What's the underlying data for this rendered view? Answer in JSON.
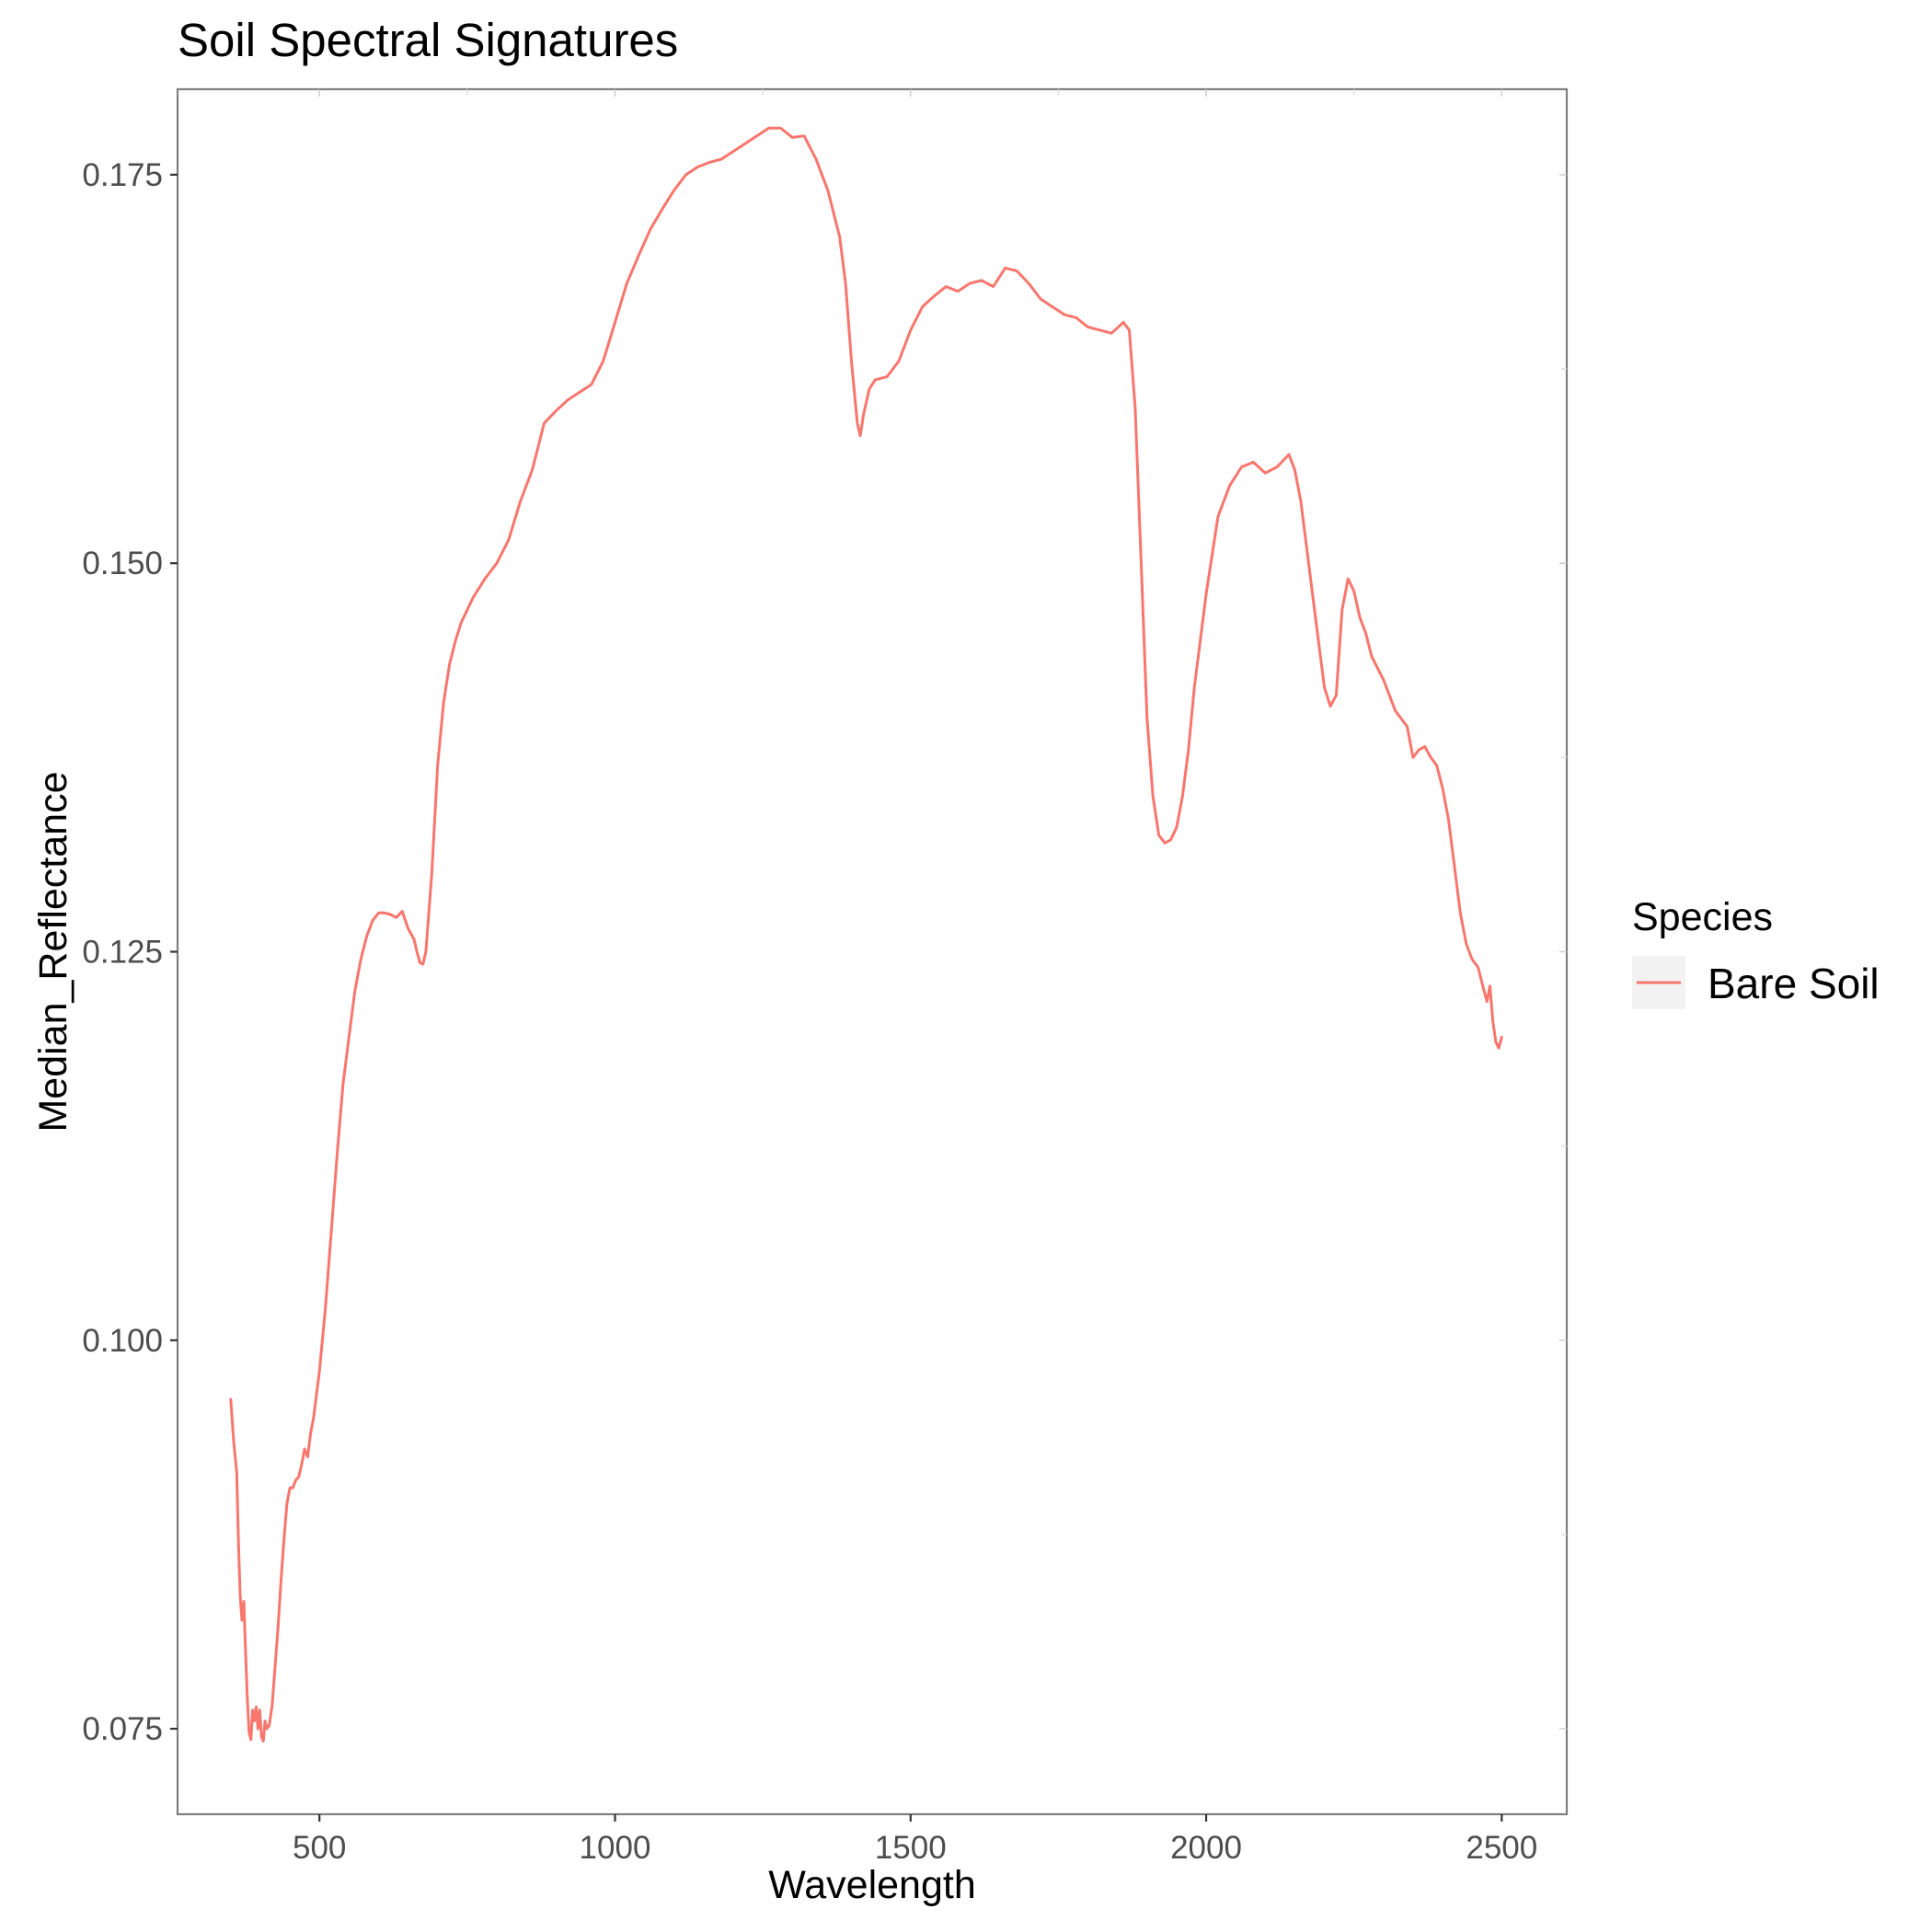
{
  "chart_data": {
    "type": "line",
    "title": "Soil Spectral Signatures",
    "xlabel": "Wavelength",
    "ylabel": "Median_Reflectance",
    "xlim": [
      260,
      2610
    ],
    "ylim": [
      0.0695,
      0.1805
    ],
    "x_ticks": [
      500,
      1000,
      1500,
      2000,
      2500
    ],
    "x_tick_labels": [
      "500",
      "1000",
      "1500",
      "2000",
      "2500"
    ],
    "x_minor_ticks": [
      750,
      1250,
      1750,
      2250
    ],
    "y_ticks": [
      0.075,
      0.1,
      0.125,
      0.15,
      0.175
    ],
    "y_tick_labels": [
      "0.075",
      "0.100",
      "0.125",
      "0.150",
      "0.175"
    ],
    "y_minor_ticks": [
      0.0875,
      0.1125,
      0.1375,
      0.1625
    ],
    "grid": false,
    "legend": {
      "title": "Species",
      "position": "right"
    },
    "series": [
      {
        "name": "Bare Soil",
        "color": "#F8766D",
        "x": [
          350,
          355,
          360,
          363,
          366,
          369,
          372,
          375,
          378,
          381,
          384,
          387,
          390,
          393,
          396,
          399,
          402,
          405,
          408,
          411,
          415,
          420,
          425,
          430,
          435,
          440,
          445,
          450,
          455,
          460,
          465,
          470,
          475,
          480,
          485,
          490,
          495,
          500,
          510,
          520,
          530,
          540,
          550,
          560,
          570,
          580,
          590,
          600,
          610,
          620,
          630,
          640,
          650,
          660,
          665,
          670,
          675,
          680,
          690,
          700,
          710,
          720,
          730,
          740,
          750,
          760,
          780,
          800,
          820,
          840,
          860,
          880,
          900,
          920,
          940,
          960,
          980,
          1000,
          1020,
          1040,
          1060,
          1080,
          1100,
          1120,
          1140,
          1160,
          1180,
          1200,
          1220,
          1240,
          1260,
          1280,
          1300,
          1320,
          1340,
          1360,
          1380,
          1390,
          1400,
          1410,
          1415,
          1420,
          1430,
          1440,
          1460,
          1480,
          1500,
          1520,
          1540,
          1560,
          1580,
          1600,
          1620,
          1640,
          1660,
          1680,
          1700,
          1720,
          1740,
          1760,
          1780,
          1800,
          1820,
          1840,
          1860,
          1870,
          1880,
          1890,
          1900,
          1910,
          1920,
          1930,
          1940,
          1950,
          1960,
          1970,
          1980,
          2000,
          2020,
          2040,
          2060,
          2080,
          2100,
          2120,
          2140,
          2150,
          2160,
          2170,
          2180,
          2190,
          2200,
          2210,
          2220,
          2230,
          2240,
          2250,
          2260,
          2270,
          2280,
          2300,
          2320,
          2340,
          2350,
          2360,
          2370,
          2380,
          2390,
          2400,
          2410,
          2420,
          2430,
          2440,
          2450,
          2460,
          2470,
          2475,
          2480,
          2485,
          2490,
          2495,
          2500
        ],
        "y": [
          0.0962,
          0.0935,
          0.0915,
          0.087,
          0.0835,
          0.082,
          0.0832,
          0.08,
          0.077,
          0.0748,
          0.0743,
          0.0762,
          0.0755,
          0.0764,
          0.075,
          0.0762,
          0.0745,
          0.0742,
          0.0755,
          0.075,
          0.0752,
          0.0765,
          0.079,
          0.0815,
          0.0845,
          0.0872,
          0.0895,
          0.0905,
          0.0905,
          0.091,
          0.0912,
          0.092,
          0.093,
          0.0925,
          0.094,
          0.095,
          0.0965,
          0.098,
          0.102,
          0.107,
          0.112,
          0.1165,
          0.1195,
          0.1225,
          0.1245,
          0.126,
          0.127,
          0.1275,
          0.1275,
          0.1274,
          0.1272,
          0.1276,
          0.1265,
          0.1258,
          0.125,
          0.1243,
          0.1242,
          0.125,
          0.13,
          0.137,
          0.141,
          0.1435,
          0.145,
          0.1462,
          0.147,
          0.1478,
          0.149,
          0.15,
          0.1515,
          0.154,
          0.156,
          0.159,
          0.1598,
          0.1605,
          0.161,
          0.1615,
          0.163,
          0.1655,
          0.168,
          0.1698,
          0.1715,
          0.1728,
          0.174,
          0.175,
          0.1755,
          0.1758,
          0.176,
          0.1765,
          0.177,
          0.1775,
          0.178,
          0.178,
          0.1774,
          0.1775,
          0.176,
          0.174,
          0.171,
          0.168,
          0.163,
          0.159,
          0.1582,
          0.1595,
          0.1612,
          0.1618,
          0.162,
          0.163,
          0.165,
          0.1665,
          0.1672,
          0.1678,
          0.1675,
          0.168,
          0.1682,
          0.1678,
          0.169,
          0.1688,
          0.168,
          0.167,
          0.1665,
          0.166,
          0.1658,
          0.1652,
          0.165,
          0.1648,
          0.1655,
          0.165,
          0.16,
          0.15,
          0.14,
          0.135,
          0.1325,
          0.132,
          0.1322,
          0.133,
          0.135,
          0.138,
          0.142,
          0.148,
          0.153,
          0.155,
          0.1562,
          0.1565,
          0.1558,
          0.1562,
          0.157,
          0.156,
          0.154,
          0.151,
          0.148,
          0.145,
          0.142,
          0.1408,
          0.1415,
          0.147,
          0.149,
          0.1482,
          0.1465,
          0.1455,
          0.144,
          0.1425,
          0.1405,
          0.1395,
          0.1375,
          0.138,
          0.1382,
          0.1375,
          0.137,
          0.1355,
          0.1335,
          0.1305,
          0.1275,
          0.1255,
          0.1245,
          0.124,
          0.1225,
          0.1218,
          0.1228,
          0.1205,
          0.1192,
          0.1188,
          0.1195
        ]
      }
    ]
  }
}
